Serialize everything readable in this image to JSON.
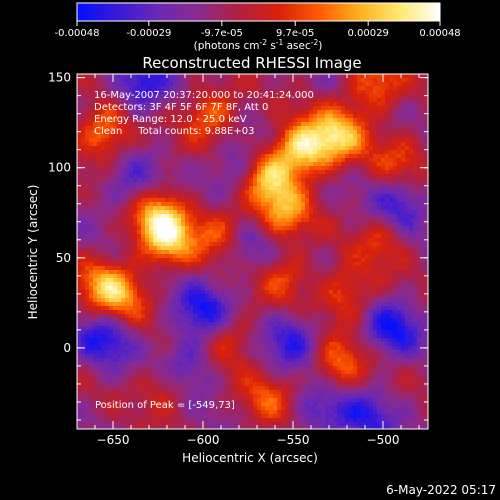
{
  "colorbar": {
    "ticks": [
      "-0.00048",
      "-0.00029",
      "-9.7e-05",
      "9.7e-05",
      "0.00029",
      "0.00048"
    ],
    "tick_values": [
      -0.00048,
      -0.00029,
      -9.7e-05,
      9.7e-05,
      0.00029,
      0.00048
    ],
    "range": [
      -0.00048,
      0.00048
    ],
    "unit_main": "(photons cm",
    "unit_sup1": "-2",
    "unit_mid1": " s",
    "unit_sup2": "-1",
    "unit_mid2": " asec",
    "unit_sup3": "-2",
    "unit_end": ")",
    "colors": [
      "#0010ff",
      "#3a18d8",
      "#6a28b4",
      "#8a2a8e",
      "#b02040",
      "#d8200a",
      "#ff5a00",
      "#ffb020",
      "#ffe870",
      "#ffffff"
    ]
  },
  "chart_data": {
    "type": "heatmap",
    "title": "Reconstructed RHESSI Image",
    "xlabel": "Heliocentric X (arcsec)",
    "ylabel": "Heliocentric Y (arcsec)",
    "xlim": [
      -670,
      -475
    ],
    "ylim": [
      -45,
      152
    ],
    "xticks": [
      -650,
      -600,
      -550,
      -500
    ],
    "yticks": [
      0,
      50,
      100,
      150
    ],
    "annotations": [
      "16-May-2007 20:37:20.000 to 20:41:24.000",
      "Detectors: 3F 4F 5F 6F 7F 8F, Att 0",
      "Energy Range: 12.0 - 25.0 keV",
      "Clean     Total counts: 9.88E+03"
    ],
    "peak_label": "Position of Peak = [-549,73]",
    "peak": [
      -549,
      73
    ],
    "hotspots": [
      {
        "x": -545,
        "y": 110,
        "v": 0.00048
      },
      {
        "x": -565,
        "y": 95,
        "v": 0.0004
      },
      {
        "x": -525,
        "y": 118,
        "v": 0.0004
      },
      {
        "x": -555,
        "y": 75,
        "v": 0.00032
      },
      {
        "x": -620,
        "y": 60,
        "v": 0.0004
      },
      {
        "x": -625,
        "y": 75,
        "v": 0.00034
      },
      {
        "x": -655,
        "y": 120,
        "v": 0.00034
      },
      {
        "x": -655,
        "y": 35,
        "v": 0.00028
      },
      {
        "x": -645,
        "y": 28,
        "v": 0.00024
      },
      {
        "x": -590,
        "y": 65,
        "v": 0.00026
      },
      {
        "x": -595,
        "y": 130,
        "v": 0.0003
      },
      {
        "x": -520,
        "y": 30,
        "v": 0.00026
      },
      {
        "x": -525,
        "y": -10,
        "v": 0.00028
      },
      {
        "x": -505,
        "y": 145,
        "v": 0.00028
      },
      {
        "x": -555,
        "y": 40,
        "v": 0.00022
      },
      {
        "x": -620,
        "y": -20,
        "v": 0.00022
      },
      {
        "x": -585,
        "y": 5,
        "v": 0.0002
      },
      {
        "x": -565,
        "y": -30,
        "v": 0.00022
      },
      {
        "x": -500,
        "y": 60,
        "v": 0.00018
      },
      {
        "x": -490,
        "y": 105,
        "v": 0.0002
      }
    ],
    "coldspots": [
      {
        "x": -635,
        "y": 145,
        "v": -0.0003
      },
      {
        "x": -580,
        "y": 100,
        "v": -0.00024
      },
      {
        "x": -600,
        "y": 20,
        "v": -0.0003
      },
      {
        "x": -610,
        "y": -10,
        "v": -0.00026
      },
      {
        "x": -550,
        "y": 5,
        "v": -0.00026
      },
      {
        "x": -535,
        "y": -35,
        "v": -0.00022
      },
      {
        "x": -495,
        "y": 10,
        "v": -0.0003
      },
      {
        "x": -490,
        "y": 80,
        "v": -0.00024
      },
      {
        "x": -655,
        "y": 5,
        "v": -0.00028
      },
      {
        "x": -640,
        "y": 90,
        "v": -0.0002
      },
      {
        "x": -510,
        "y": -40,
        "v": -0.00024
      },
      {
        "x": -575,
        "y": 55,
        "v": -0.00018
      }
    ]
  },
  "footer": {
    "date": "6-May-2022 05:17"
  }
}
